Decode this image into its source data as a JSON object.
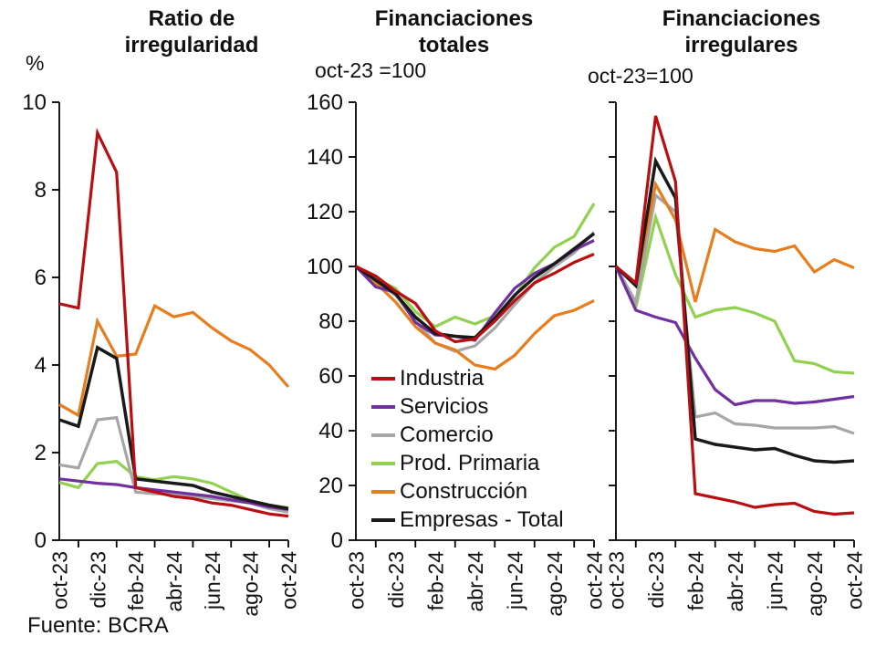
{
  "source_note": "Fuente: BCRA",
  "legend": {
    "items": [
      {
        "label": "Industria",
        "color": "#b90f12"
      },
      {
        "label": "Servicios",
        "color": "#7030a0"
      },
      {
        "label": "Comercio",
        "color": "#a6a6a6"
      },
      {
        "label": "Prod. Primaria",
        "color": "#92d050"
      },
      {
        "label": "Construcción",
        "color": "#e87d1e"
      },
      {
        "label": "Empresas - Total",
        "color": "#1a1a1a"
      }
    ]
  },
  "chart_data": [
    {
      "id": "ratio",
      "type": "line",
      "title": "Ratio de irregularidad",
      "title_lines": [
        "Ratio de",
        "irregularidad"
      ],
      "unit_label": "%",
      "ylim": [
        0,
        10
      ],
      "ytick_step": 2,
      "ytick_labels": [
        "0",
        "2",
        "4",
        "6",
        "8",
        "10"
      ],
      "show_ytick_labels": true,
      "categories": [
        "oct-23",
        "nov-23",
        "dic-23",
        "ene-24",
        "feb-24",
        "mar-24",
        "abr-24",
        "may-24",
        "jun-24",
        "jul-24",
        "ago-24",
        "sep-24",
        "oct-24"
      ],
      "x_tick_labels": [
        "oct-23",
        "dic-23",
        "feb-24",
        "abr-24",
        "jun-24",
        "ago-24",
        "oct-24"
      ],
      "series": [
        {
          "name": "Industria",
          "values": [
            5.4,
            5.3,
            9.3,
            8.4,
            1.2,
            1.1,
            1.0,
            0.95,
            0.85,
            0.8,
            0.7,
            0.6,
            0.55
          ]
        },
        {
          "name": "Servicios",
          "values": [
            1.4,
            1.35,
            1.3,
            1.27,
            1.2,
            1.15,
            1.1,
            1.05,
            1.0,
            0.92,
            0.85,
            0.76,
            0.7
          ]
        },
        {
          "name": "Comercio",
          "values": [
            1.72,
            1.65,
            2.75,
            2.8,
            1.1,
            1.06,
            1.05,
            1.0,
            0.95,
            0.9,
            0.85,
            0.72,
            0.64
          ]
        },
        {
          "name": "Prod. Primaria",
          "values": [
            1.32,
            1.2,
            1.75,
            1.8,
            1.45,
            1.38,
            1.45,
            1.4,
            1.3,
            1.1,
            0.9,
            0.8,
            0.74
          ]
        },
        {
          "name": "Construcción",
          "values": [
            3.1,
            2.85,
            5.0,
            4.2,
            4.25,
            5.35,
            5.1,
            5.2,
            4.85,
            4.55,
            4.35,
            4.0,
            3.5
          ]
        },
        {
          "name": "Empresas - Total",
          "values": [
            2.75,
            2.6,
            4.4,
            4.15,
            1.4,
            1.35,
            1.3,
            1.25,
            1.1,
            1.0,
            0.9,
            0.8,
            0.72
          ]
        }
      ]
    },
    {
      "id": "totales",
      "type": "line",
      "title": "Financiaciones totales",
      "title_lines": [
        "Financiaciones",
        "totales"
      ],
      "subtitle": "oct-23 =100",
      "ylim": [
        0,
        160
      ],
      "ytick_step": 20,
      "ytick_labels": [
        "0",
        "20",
        "40",
        "60",
        "80",
        "100",
        "120",
        "140",
        "160"
      ],
      "show_ytick_labels": true,
      "categories": [
        "oct-23",
        "nov-23",
        "dic-23",
        "ene-24",
        "feb-24",
        "mar-24",
        "abr-24",
        "may-24",
        "jun-24",
        "jul-24",
        "ago-24",
        "sep-24",
        "oct-24"
      ],
      "x_tick_labels": [
        "oct-23",
        "dic-23",
        "feb-24",
        "abr-24",
        "jun-24",
        "ago-24",
        "oct-24"
      ],
      "series": [
        {
          "name": "Industria",
          "values": [
            100,
            96.5,
            91,
            86.5,
            76.5,
            72.5,
            73.5,
            80,
            87.5,
            94,
            97.5,
            101.5,
            104.5
          ]
        },
        {
          "name": "Servicios",
          "values": [
            100,
            92.5,
            90.5,
            79.5,
            75,
            74.5,
            73,
            83,
            92,
            97.5,
            101,
            106,
            109.5
          ]
        },
        {
          "name": "Comercio",
          "values": [
            100,
            94.5,
            89.5,
            80,
            72,
            69,
            71,
            77.5,
            86,
            94,
            100,
            105,
            112.5
          ]
        },
        {
          "name": "Prod. Primaria",
          "values": [
            100,
            95.5,
            92,
            83.5,
            78,
            81.5,
            79,
            82,
            89,
            99.5,
            107,
            111,
            123
          ]
        },
        {
          "name": "Construcción",
          "values": [
            100,
            94,
            87,
            78,
            72,
            69.5,
            64,
            62.5,
            67.5,
            75.5,
            82,
            84,
            87.5
          ]
        },
        {
          "name": "Empresas - Total",
          "values": [
            100,
            95,
            90,
            81.5,
            75.5,
            74.5,
            74,
            81,
            89.5,
            96,
            101,
            106.5,
            112
          ]
        }
      ]
    },
    {
      "id": "irregulares",
      "type": "line",
      "title": "Financiaciones irregulares",
      "title_lines": [
        "Financiaciones",
        "irregulares"
      ],
      "subtitle": "oct-23=100",
      "ylim": [
        0,
        160
      ],
      "ytick_step": 20,
      "ytick_labels": [
        "0",
        "20",
        "40",
        "60",
        "80",
        "100",
        "120",
        "140",
        "160"
      ],
      "show_ytick_labels": false,
      "categories": [
        "oct-23",
        "nov-23",
        "dic-23",
        "ene-24",
        "feb-24",
        "mar-24",
        "abr-24",
        "may-24",
        "jun-24",
        "jul-24",
        "ago-24",
        "sep-24",
        "oct-24"
      ],
      "x_tick_labels": [
        "oct-23",
        "dic-23",
        "feb-24",
        "abr-24",
        "jun-24",
        "ago-24",
        "oct-24"
      ],
      "series": [
        {
          "name": "Industria",
          "values": [
            100,
            94,
            155,
            131,
            17,
            15.5,
            14,
            12,
            13,
            13.5,
            10.5,
            9.5,
            10
          ]
        },
        {
          "name": "Servicios",
          "values": [
            100,
            84,
            81.5,
            79.5,
            66.5,
            55,
            49.5,
            51,
            51,
            50,
            50.5,
            51.5,
            52.5
          ]
        },
        {
          "name": "Comercio",
          "values": [
            100,
            87,
            126,
            120,
            45,
            46.5,
            42.5,
            42,
            41,
            41,
            41,
            41.5,
            39
          ]
        },
        {
          "name": "Prod. Primaria",
          "values": [
            100,
            85,
            118,
            97,
            81.5,
            84,
            85,
            83,
            80,
            65.5,
            64.5,
            61.5,
            61
          ]
        },
        {
          "name": "Construcción",
          "values": [
            100,
            93,
            130,
            117,
            87,
            113.5,
            109,
            106.5,
            105.5,
            107.5,
            98,
            102.5,
            99.5
          ]
        },
        {
          "name": "Empresas - Total",
          "values": [
            100,
            93,
            138.5,
            125,
            37,
            35,
            34,
            33,
            33.5,
            31,
            29,
            28.5,
            29
          ]
        }
      ]
    }
  ]
}
